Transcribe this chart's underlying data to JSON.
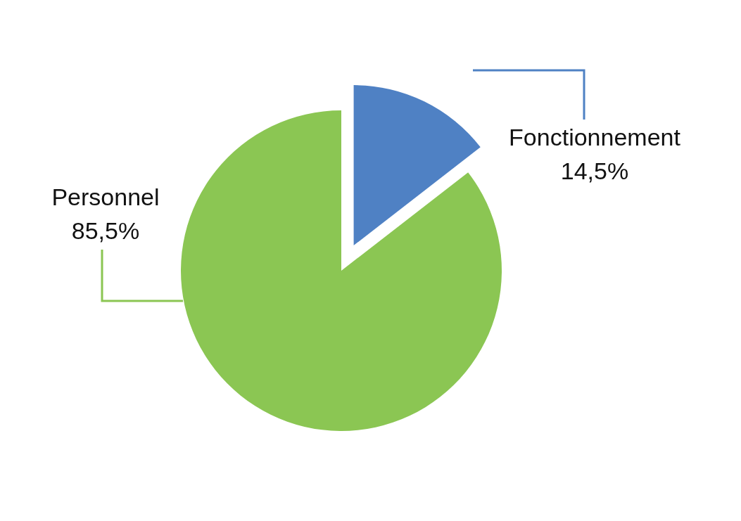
{
  "chart_data": {
    "type": "pie",
    "categories": [
      "Fonctionnement",
      "Personnel"
    ],
    "values": [
      14.5,
      85.5
    ],
    "colors": [
      "#4f81c4",
      "#8bc653"
    ],
    "value_labels": [
      "14,5%",
      "85,5%"
    ]
  }
}
